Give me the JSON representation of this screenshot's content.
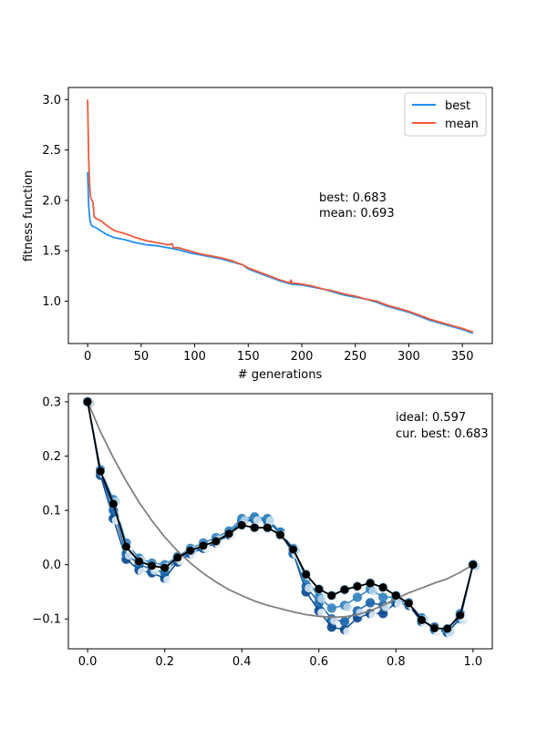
{
  "chart_data": [
    {
      "type": "line",
      "xlabel": "# generations",
      "ylabel": "fitness function",
      "xlim": [
        -18,
        378
      ],
      "ylim": [
        0.58,
        3.12
      ],
      "xticks": [
        0,
        50,
        100,
        150,
        200,
        250,
        300,
        350
      ],
      "yticks": [
        1.0,
        1.5,
        2.0,
        2.5,
        3.0
      ],
      "ytick_labels": [
        "1.0",
        "1.5",
        "2.0",
        "2.5",
        "3.0"
      ],
      "legend": {
        "placement": "upper-right",
        "entries": [
          "best",
          "mean"
        ]
      },
      "annotations": [
        "best: 0.683",
        "mean: 0.693"
      ],
      "series": [
        {
          "name": "best",
          "color": "#1f8ef1",
          "x": [
            0,
            1,
            2,
            3,
            5,
            8,
            12,
            18,
            25,
            35,
            45,
            55,
            65,
            75,
            80,
            85,
            95,
            105,
            115,
            125,
            135,
            145,
            150,
            160,
            170,
            180,
            190,
            200,
            210,
            220,
            230,
            240,
            250,
            260,
            270,
            280,
            290,
            300,
            310,
            320,
            330,
            340,
            350,
            360
          ],
          "y": [
            2.28,
            1.95,
            1.82,
            1.76,
            1.74,
            1.73,
            1.7,
            1.66,
            1.63,
            1.61,
            1.58,
            1.56,
            1.55,
            1.53,
            1.52,
            1.51,
            1.48,
            1.46,
            1.44,
            1.42,
            1.39,
            1.36,
            1.32,
            1.28,
            1.24,
            1.2,
            1.17,
            1.16,
            1.14,
            1.12,
            1.09,
            1.06,
            1.04,
            1.02,
            0.99,
            0.95,
            0.92,
            0.89,
            0.85,
            0.81,
            0.78,
            0.75,
            0.72,
            0.683
          ]
        },
        {
          "name": "mean",
          "color": "#f05a3c",
          "x": [
            0,
            1,
            2,
            3,
            5,
            6,
            8,
            12,
            18,
            25,
            35,
            45,
            55,
            65,
            75,
            79,
            80,
            85,
            95,
            105,
            115,
            125,
            135,
            145,
            150,
            160,
            170,
            180,
            189,
            190,
            191,
            200,
            210,
            220,
            230,
            240,
            250,
            260,
            270,
            280,
            290,
            300,
            310,
            320,
            330,
            340,
            350,
            360
          ],
          "y": [
            3.0,
            2.4,
            2.12,
            2.02,
            1.98,
            1.84,
            1.82,
            1.8,
            1.75,
            1.7,
            1.67,
            1.63,
            1.6,
            1.58,
            1.56,
            1.57,
            1.53,
            1.53,
            1.5,
            1.47,
            1.45,
            1.43,
            1.4,
            1.36,
            1.33,
            1.29,
            1.25,
            1.21,
            1.18,
            1.21,
            1.18,
            1.17,
            1.15,
            1.12,
            1.1,
            1.07,
            1.05,
            1.02,
            1.0,
            0.96,
            0.93,
            0.9,
            0.86,
            0.82,
            0.79,
            0.76,
            0.73,
            0.693
          ]
        }
      ]
    },
    {
      "type": "line",
      "xlim": [
        -0.05,
        1.05
      ],
      "ylim": [
        -0.155,
        0.315
      ],
      "xticks": [
        0.0,
        0.2,
        0.4,
        0.6,
        0.8,
        1.0
      ],
      "xtick_labels": [
        "0.0",
        "0.2",
        "0.4",
        "0.6",
        "0.8",
        "1.0"
      ],
      "yticks": [
        -0.1,
        0.0,
        0.1,
        0.2,
        0.3
      ],
      "ytick_labels": [
        "−0.1",
        "0.0",
        "0.1",
        "0.2",
        "0.3"
      ],
      "annotations": [
        "ideal: 0.597",
        "cur. best: 0.683"
      ],
      "ideal_color": "#808080",
      "best_color": "#000000",
      "history_colors": [
        "#f2f8fd",
        "#d8e7f5",
        "#b9d6eb",
        "#8ebfe1",
        "#5ba3d0",
        "#3383bf",
        "#1764ab",
        "#08468e"
      ],
      "x": [
        0.0,
        0.0333,
        0.0667,
        0.1,
        0.1333,
        0.1667,
        0.2,
        0.2333,
        0.2667,
        0.3,
        0.3333,
        0.3667,
        0.4,
        0.4333,
        0.4667,
        0.5,
        0.5333,
        0.5667,
        0.6,
        0.6333,
        0.6667,
        0.7,
        0.7333,
        0.7667,
        0.8,
        0.8333,
        0.8667,
        0.9,
        0.9333,
        0.9667,
        1.0
      ],
      "ideal": [
        0.3,
        0.245,
        0.197,
        0.154,
        0.115,
        0.081,
        0.051,
        0.025,
        0.003,
        -0.016,
        -0.032,
        -0.046,
        -0.057,
        -0.067,
        -0.075,
        -0.081,
        -0.087,
        -0.092,
        -0.095,
        -0.097,
        -0.096,
        -0.092,
        -0.085,
        -0.075,
        -0.063,
        -0.052,
        -0.043,
        -0.034,
        -0.026,
        -0.014,
        0.0
      ],
      "best": [
        0.3,
        0.172,
        0.112,
        0.033,
        0.006,
        -0.002,
        -0.006,
        0.013,
        0.026,
        0.035,
        0.043,
        0.057,
        0.073,
        0.068,
        0.068,
        0.055,
        0.028,
        -0.018,
        -0.045,
        -0.057,
        -0.046,
        -0.04,
        -0.034,
        -0.042,
        -0.057,
        -0.071,
        -0.102,
        -0.117,
        -0.118,
        -0.093,
        0.0
      ],
      "history": [
        [
          0.3,
          0.165,
          0.085,
          0.01,
          -0.01,
          -0.015,
          -0.025,
          0.005,
          0.02,
          0.03,
          0.04,
          0.055,
          0.078,
          0.083,
          0.083,
          0.06,
          0.022,
          -0.05,
          -0.085,
          -0.115,
          -0.12,
          -0.098,
          -0.09,
          -0.09,
          -0.07,
          -0.075,
          -0.105,
          -0.115,
          -0.125,
          -0.098,
          0.0
        ],
        [
          0.3,
          0.17,
          0.1,
          0.02,
          0.0,
          -0.008,
          -0.015,
          0.01,
          0.023,
          0.033,
          0.045,
          0.058,
          0.08,
          0.085,
          0.08,
          0.058,
          0.02,
          -0.04,
          -0.07,
          -0.1,
          -0.105,
          -0.085,
          -0.07,
          -0.075,
          -0.065,
          -0.072,
          -0.1,
          -0.12,
          -0.125,
          -0.1,
          0.0
        ],
        [
          0.3,
          0.175,
          0.12,
          0.04,
          0.012,
          0.003,
          0.0,
          0.015,
          0.03,
          0.04,
          0.05,
          0.062,
          0.085,
          0.088,
          0.085,
          0.06,
          0.03,
          -0.025,
          -0.06,
          -0.08,
          -0.075,
          -0.06,
          -0.045,
          -0.06,
          -0.06,
          -0.07,
          -0.098,
          -0.118,
          -0.12,
          -0.09,
          0.0
        ],
        [
          0.3,
          0.172,
          0.112,
          0.033,
          0.006,
          -0.002,
          -0.006,
          0.013,
          0.026,
          0.035,
          0.043,
          0.057,
          0.073,
          0.068,
          0.068,
          0.055,
          0.028,
          -0.018,
          -0.045,
          -0.057,
          -0.046,
          -0.04,
          -0.034,
          -0.042,
          -0.057,
          -0.071,
          -0.102,
          -0.117,
          -0.118,
          -0.093,
          0.0
        ]
      ]
    }
  ]
}
